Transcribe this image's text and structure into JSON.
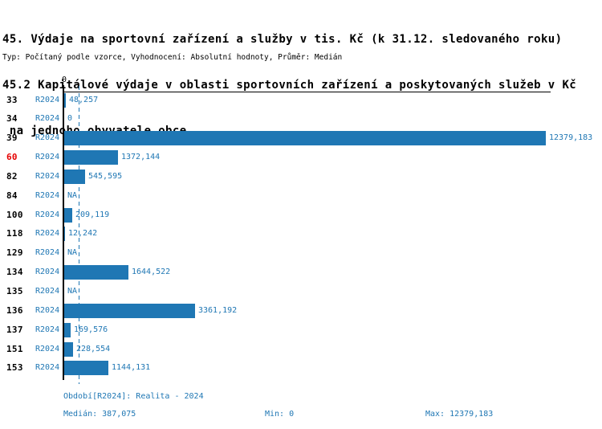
{
  "header": {
    "title_line1": "45. Výdaje na sportovní zařízení a služby v tis. Kč (k 31.12. sledovaného roku)",
    "title_line2": "45.2 Kapitálové výdaje v oblasti sportovních zařízení a poskytovaných služeb v Kč",
    "title_line3": " na jednoho obyvatele obce",
    "meta_line": "Typ: Počítaný podle vzorce, Vyhodnocení: Absolutní hodnoty, Průměr: Medián"
  },
  "chart_data": {
    "type": "bar",
    "orientation": "horizontal",
    "title": "45.2 Kapitálové výdaje v oblasti sportovních zařízení a poskytovaných služeb v Kč na jednoho obyvatele obce",
    "axis": {
      "zero_tick_label": "0",
      "xlim": [
        0,
        12379.183
      ],
      "grid": false
    },
    "median_reference_line": 387.075,
    "rows": [
      {
        "id": "33",
        "period": "R2024",
        "value": 48.257,
        "value_label": "48,257",
        "highlighted": false
      },
      {
        "id": "34",
        "period": "R2024",
        "value": 0,
        "value_label": "0",
        "highlighted": false
      },
      {
        "id": "39",
        "period": "R2024",
        "value": 12379.183,
        "value_label": "12379,183",
        "highlighted": false
      },
      {
        "id": "60",
        "period": "R2024",
        "value": 1372.144,
        "value_label": "1372,144",
        "highlighted": true
      },
      {
        "id": "82",
        "period": "R2024",
        "value": 545.595,
        "value_label": "545,595",
        "highlighted": false
      },
      {
        "id": "84",
        "period": "R2024",
        "value": null,
        "value_label": "NA",
        "highlighted": false
      },
      {
        "id": "100",
        "period": "R2024",
        "value": 209.119,
        "value_label": "209,119",
        "highlighted": false
      },
      {
        "id": "118",
        "period": "R2024",
        "value": 12.242,
        "value_label": "12,242",
        "highlighted": false
      },
      {
        "id": "129",
        "period": "R2024",
        "value": null,
        "value_label": "NA",
        "highlighted": false
      },
      {
        "id": "134",
        "period": "R2024",
        "value": 1644.522,
        "value_label": "1644,522",
        "highlighted": false
      },
      {
        "id": "135",
        "period": "R2024",
        "value": null,
        "value_label": "NA",
        "highlighted": false
      },
      {
        "id": "136",
        "period": "R2024",
        "value": 3361.192,
        "value_label": "3361,192",
        "highlighted": false
      },
      {
        "id": "137",
        "period": "R2024",
        "value": 169.576,
        "value_label": "169,576",
        "highlighted": false
      },
      {
        "id": "151",
        "period": "R2024",
        "value": 228.554,
        "value_label": "228,554",
        "highlighted": false
      },
      {
        "id": "153",
        "period": "R2024",
        "value": 1144.131,
        "value_label": "1144,131",
        "highlighted": false
      }
    ],
    "stats": {
      "median": 387.075,
      "min": 0,
      "max": 12379.183
    }
  },
  "footer": {
    "period_label": "Období[R2024]: Realita - 2024",
    "median_label": "Medián: 387,075",
    "min_label": "Min: 0",
    "max_label": "Max: 12379,183"
  },
  "colors": {
    "bar": "#1f77b4",
    "blue_text": "#1f77b4",
    "highlight_red": "#e60000",
    "axis": "#000000"
  }
}
